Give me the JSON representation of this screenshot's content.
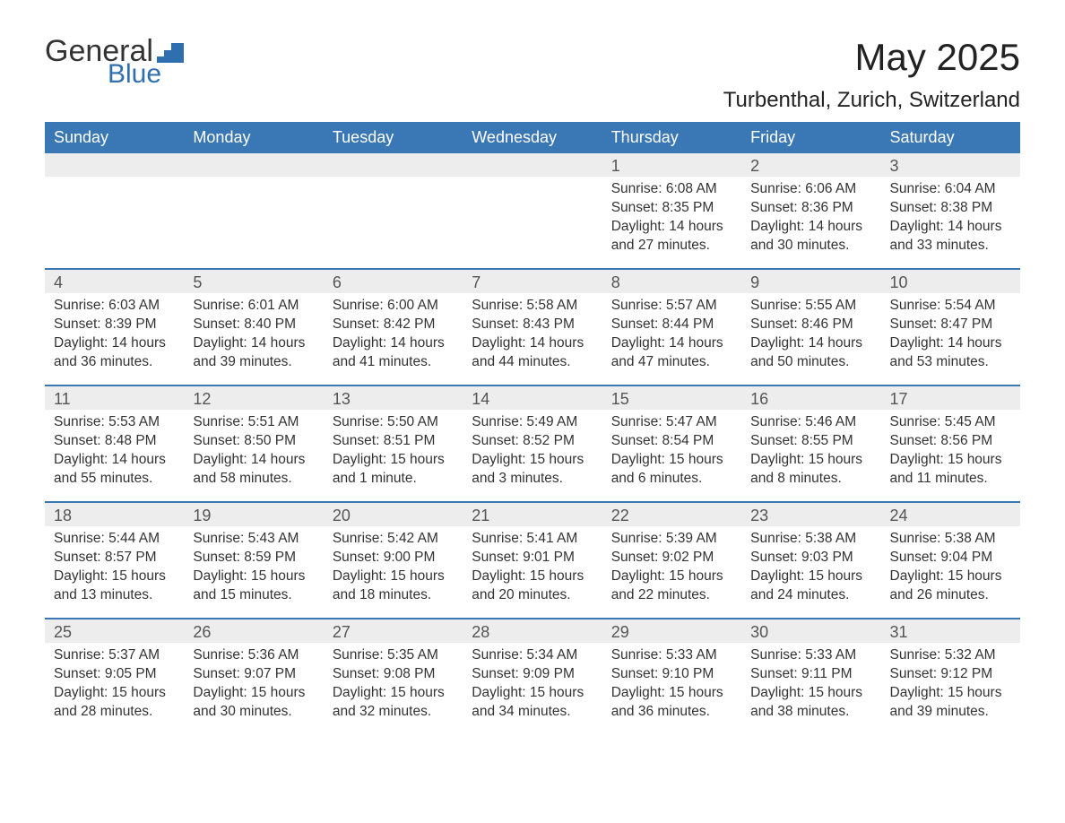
{
  "logo": {
    "text1": "General",
    "text2": "Blue",
    "shape_color": "#2f6fb0"
  },
  "title": "May 2025",
  "location": "Turbenthal, Zurich, Switzerland",
  "colors": {
    "header_bg": "#3a77b5",
    "header_text": "#ffffff",
    "daynum_bg": "#ededed",
    "daynum_text": "#555555",
    "body_text": "#333333",
    "divider": "#3a77b5",
    "page_bg": "#ffffff"
  },
  "typography": {
    "month_title_size": 42,
    "location_size": 24,
    "header_cell_size": 18,
    "daynum_size": 18,
    "body_size": 15.5
  },
  "day_headers": [
    "Sunday",
    "Monday",
    "Tuesday",
    "Wednesday",
    "Thursday",
    "Friday",
    "Saturday"
  ],
  "weeks": [
    [
      {
        "num": "",
        "sunrise": "",
        "sunset": "",
        "daylight": ""
      },
      {
        "num": "",
        "sunrise": "",
        "sunset": "",
        "daylight": ""
      },
      {
        "num": "",
        "sunrise": "",
        "sunset": "",
        "daylight": ""
      },
      {
        "num": "",
        "sunrise": "",
        "sunset": "",
        "daylight": ""
      },
      {
        "num": "1",
        "sunrise": "Sunrise: 6:08 AM",
        "sunset": "Sunset: 8:35 PM",
        "daylight": "Daylight: 14 hours and 27 minutes."
      },
      {
        "num": "2",
        "sunrise": "Sunrise: 6:06 AM",
        "sunset": "Sunset: 8:36 PM",
        "daylight": "Daylight: 14 hours and 30 minutes."
      },
      {
        "num": "3",
        "sunrise": "Sunrise: 6:04 AM",
        "sunset": "Sunset: 8:38 PM",
        "daylight": "Daylight: 14 hours and 33 minutes."
      }
    ],
    [
      {
        "num": "4",
        "sunrise": "Sunrise: 6:03 AM",
        "sunset": "Sunset: 8:39 PM",
        "daylight": "Daylight: 14 hours and 36 minutes."
      },
      {
        "num": "5",
        "sunrise": "Sunrise: 6:01 AM",
        "sunset": "Sunset: 8:40 PM",
        "daylight": "Daylight: 14 hours and 39 minutes."
      },
      {
        "num": "6",
        "sunrise": "Sunrise: 6:00 AM",
        "sunset": "Sunset: 8:42 PM",
        "daylight": "Daylight: 14 hours and 41 minutes."
      },
      {
        "num": "7",
        "sunrise": "Sunrise: 5:58 AM",
        "sunset": "Sunset: 8:43 PM",
        "daylight": "Daylight: 14 hours and 44 minutes."
      },
      {
        "num": "8",
        "sunrise": "Sunrise: 5:57 AM",
        "sunset": "Sunset: 8:44 PM",
        "daylight": "Daylight: 14 hours and 47 minutes."
      },
      {
        "num": "9",
        "sunrise": "Sunrise: 5:55 AM",
        "sunset": "Sunset: 8:46 PM",
        "daylight": "Daylight: 14 hours and 50 minutes."
      },
      {
        "num": "10",
        "sunrise": "Sunrise: 5:54 AM",
        "sunset": "Sunset: 8:47 PM",
        "daylight": "Daylight: 14 hours and 53 minutes."
      }
    ],
    [
      {
        "num": "11",
        "sunrise": "Sunrise: 5:53 AM",
        "sunset": "Sunset: 8:48 PM",
        "daylight": "Daylight: 14 hours and 55 minutes."
      },
      {
        "num": "12",
        "sunrise": "Sunrise: 5:51 AM",
        "sunset": "Sunset: 8:50 PM",
        "daylight": "Daylight: 14 hours and 58 minutes."
      },
      {
        "num": "13",
        "sunrise": "Sunrise: 5:50 AM",
        "sunset": "Sunset: 8:51 PM",
        "daylight": "Daylight: 15 hours and 1 minute."
      },
      {
        "num": "14",
        "sunrise": "Sunrise: 5:49 AM",
        "sunset": "Sunset: 8:52 PM",
        "daylight": "Daylight: 15 hours and 3 minutes."
      },
      {
        "num": "15",
        "sunrise": "Sunrise: 5:47 AM",
        "sunset": "Sunset: 8:54 PM",
        "daylight": "Daylight: 15 hours and 6 minutes."
      },
      {
        "num": "16",
        "sunrise": "Sunrise: 5:46 AM",
        "sunset": "Sunset: 8:55 PM",
        "daylight": "Daylight: 15 hours and 8 minutes."
      },
      {
        "num": "17",
        "sunrise": "Sunrise: 5:45 AM",
        "sunset": "Sunset: 8:56 PM",
        "daylight": "Daylight: 15 hours and 11 minutes."
      }
    ],
    [
      {
        "num": "18",
        "sunrise": "Sunrise: 5:44 AM",
        "sunset": "Sunset: 8:57 PM",
        "daylight": "Daylight: 15 hours and 13 minutes."
      },
      {
        "num": "19",
        "sunrise": "Sunrise: 5:43 AM",
        "sunset": "Sunset: 8:59 PM",
        "daylight": "Daylight: 15 hours and 15 minutes."
      },
      {
        "num": "20",
        "sunrise": "Sunrise: 5:42 AM",
        "sunset": "Sunset: 9:00 PM",
        "daylight": "Daylight: 15 hours and 18 minutes."
      },
      {
        "num": "21",
        "sunrise": "Sunrise: 5:41 AM",
        "sunset": "Sunset: 9:01 PM",
        "daylight": "Daylight: 15 hours and 20 minutes."
      },
      {
        "num": "22",
        "sunrise": "Sunrise: 5:39 AM",
        "sunset": "Sunset: 9:02 PM",
        "daylight": "Daylight: 15 hours and 22 minutes."
      },
      {
        "num": "23",
        "sunrise": "Sunrise: 5:38 AM",
        "sunset": "Sunset: 9:03 PM",
        "daylight": "Daylight: 15 hours and 24 minutes."
      },
      {
        "num": "24",
        "sunrise": "Sunrise: 5:38 AM",
        "sunset": "Sunset: 9:04 PM",
        "daylight": "Daylight: 15 hours and 26 minutes."
      }
    ],
    [
      {
        "num": "25",
        "sunrise": "Sunrise: 5:37 AM",
        "sunset": "Sunset: 9:05 PM",
        "daylight": "Daylight: 15 hours and 28 minutes."
      },
      {
        "num": "26",
        "sunrise": "Sunrise: 5:36 AM",
        "sunset": "Sunset: 9:07 PM",
        "daylight": "Daylight: 15 hours and 30 minutes."
      },
      {
        "num": "27",
        "sunrise": "Sunrise: 5:35 AM",
        "sunset": "Sunset: 9:08 PM",
        "daylight": "Daylight: 15 hours and 32 minutes."
      },
      {
        "num": "28",
        "sunrise": "Sunrise: 5:34 AM",
        "sunset": "Sunset: 9:09 PM",
        "daylight": "Daylight: 15 hours and 34 minutes."
      },
      {
        "num": "29",
        "sunrise": "Sunrise: 5:33 AM",
        "sunset": "Sunset: 9:10 PM",
        "daylight": "Daylight: 15 hours and 36 minutes."
      },
      {
        "num": "30",
        "sunrise": "Sunrise: 5:33 AM",
        "sunset": "Sunset: 9:11 PM",
        "daylight": "Daylight: 15 hours and 38 minutes."
      },
      {
        "num": "31",
        "sunrise": "Sunrise: 5:32 AM",
        "sunset": "Sunset: 9:12 PM",
        "daylight": "Daylight: 15 hours and 39 minutes."
      }
    ]
  ]
}
